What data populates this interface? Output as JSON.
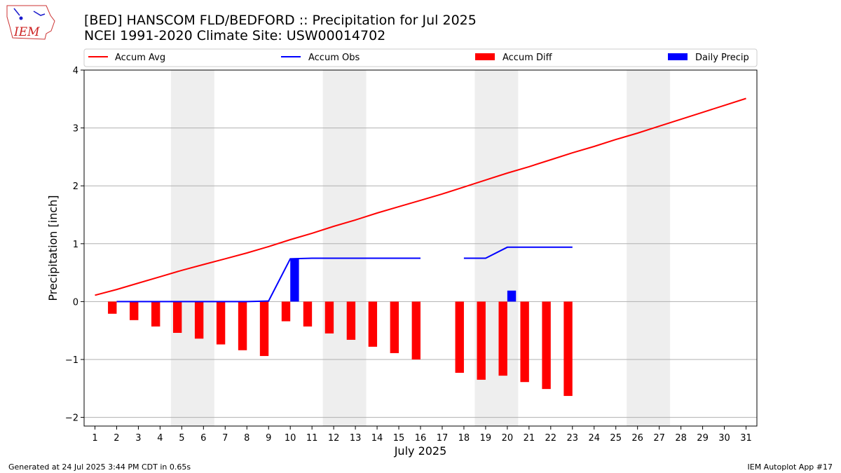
{
  "header": {
    "title": "[BED] HANSCOM FLD/BEDFORD :: Precipitation for Jul 2025",
    "subtitle": "NCEI 1991-2020 Climate Site: USW00014702",
    "logo_text": "IEM"
  },
  "footer": {
    "left": "Generated at 24 Jul 2025 3:44 PM CDT in 0.65s",
    "right": "IEM Autoplot App #17"
  },
  "colors": {
    "accum_avg": "#ff0000",
    "accum_obs": "#0000ff",
    "accum_diff": "#ff0000",
    "daily_precip": "#0000ff",
    "weekend_shade": "#eeeeee",
    "grid": "#b0b0b0"
  },
  "chart_data": {
    "type": "bar",
    "title": "[BED] HANSCOM FLD/BEDFORD :: Precipitation for Jul 2025",
    "subtitle": "NCEI 1991-2020 Climate Site: USW00014702",
    "xlabel": "July 2025",
    "ylabel": "Precipitation [inch]",
    "xlim": [
      0.5,
      31.5
    ],
    "ylim": [
      -2.15,
      4
    ],
    "yticks": [
      -2,
      -1,
      0,
      1,
      2,
      3,
      4
    ],
    "ytick_labels": [
      "−2",
      "−1",
      "0",
      "1",
      "2",
      "3",
      "4"
    ],
    "xticks": [
      1,
      2,
      3,
      4,
      5,
      6,
      7,
      8,
      9,
      10,
      11,
      12,
      13,
      14,
      15,
      16,
      17,
      18,
      19,
      20,
      21,
      22,
      23,
      24,
      25,
      26,
      27,
      28,
      29,
      30,
      31
    ],
    "grid": "horizontal",
    "legend_placement": "top",
    "weekend_shading": [
      [
        5,
        6
      ],
      [
        12,
        13
      ],
      [
        19,
        20
      ],
      [
        26,
        27
      ]
    ],
    "legend": [
      "Accum Avg",
      "Accum Obs",
      "Accum Diff",
      "Daily Precip"
    ],
    "series": [
      {
        "name": "Accum Avg",
        "kind": "line",
        "x": [
          1,
          2,
          3,
          4,
          5,
          6,
          7,
          8,
          9,
          10,
          11,
          12,
          13,
          14,
          15,
          16,
          17,
          18,
          19,
          20,
          21,
          22,
          23,
          24,
          25,
          26,
          27,
          28,
          29,
          30,
          31
        ],
        "values": [
          0.11,
          0.21,
          0.32,
          0.43,
          0.54,
          0.64,
          0.74,
          0.84,
          0.95,
          1.07,
          1.18,
          1.3,
          1.41,
          1.53,
          1.64,
          1.75,
          1.86,
          1.98,
          2.1,
          2.22,
          2.33,
          2.45,
          2.57,
          2.68,
          2.8,
          2.91,
          3.03,
          3.15,
          3.27,
          3.39,
          3.51
        ]
      },
      {
        "name": "Accum Obs",
        "kind": "line",
        "segments": [
          {
            "x": [
              2,
              3,
              4,
              5,
              6,
              7,
              8,
              9,
              10,
              11,
              12,
              13,
              14,
              15,
              16
            ],
            "values": [
              0,
              0,
              0,
              0,
              0,
              0,
              0,
              0.01,
              0.74,
              0.75,
              0.75,
              0.75,
              0.75,
              0.75,
              0.75
            ]
          },
          {
            "x": [
              18,
              19,
              20,
              21,
              22,
              23
            ],
            "values": [
              0.75,
              0.75,
              0.94,
              0.94,
              0.94,
              0.94
            ]
          }
        ]
      },
      {
        "name": "Accum Diff",
        "kind": "bar",
        "x": [
          1.8,
          2.8,
          3.8,
          4.8,
          5.8,
          6.8,
          7.8,
          8.8,
          9.8,
          10.8,
          11.8,
          12.8,
          13.8,
          14.8,
          15.8,
          17.8,
          18.8,
          19.8,
          20.8,
          21.8,
          22.8
        ],
        "values": [
          -0.21,
          -0.32,
          -0.43,
          -0.54,
          -0.64,
          -0.74,
          -0.84,
          -0.94,
          -0.34,
          -0.43,
          -0.55,
          -0.66,
          -0.78,
          -0.89,
          -1.0,
          -1.23,
          -1.35,
          -1.28,
          -1.39,
          -1.51,
          -1.63
        ]
      },
      {
        "name": "Daily Precip",
        "kind": "bar",
        "x": [
          10.2,
          20.2
        ],
        "values": [
          0.74,
          0.19
        ]
      }
    ]
  }
}
